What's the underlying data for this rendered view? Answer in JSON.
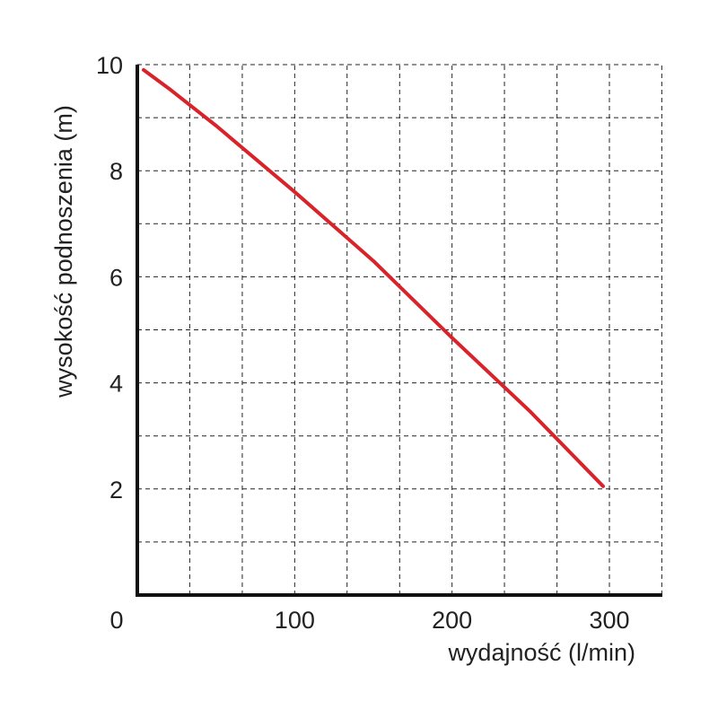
{
  "chart_data": {
    "type": "line",
    "title": "",
    "xlabel": "wydajność (l/min)",
    "ylabel": "wysokość podnoszenia (m)",
    "xlim": [
      0,
      330
    ],
    "ylim": [
      0,
      10
    ],
    "x_ticks": [
      0,
      100,
      200,
      300
    ],
    "x_tick_labels": [
      "0",
      "100",
      "200",
      "300"
    ],
    "y_ticks": [
      2,
      4,
      6,
      8,
      10
    ],
    "y_tick_labels": [
      "2",
      "4",
      "6",
      "8",
      "10"
    ],
    "x_grid": [
      33.3,
      66.7,
      100,
      133.3,
      166.7,
      200,
      233.3,
      266.7,
      300,
      333.3
    ],
    "y_grid": [
      1,
      2,
      3,
      4,
      5,
      6,
      7,
      8,
      9,
      10
    ],
    "grid": true,
    "series": [
      {
        "name": "curve",
        "color": "#d9232a",
        "x": [
          4,
          20,
          50,
          100,
          150,
          200,
          250,
          296
        ],
        "y": [
          9.9,
          9.55,
          8.85,
          7.6,
          6.3,
          4.85,
          3.45,
          2.05
        ]
      }
    ]
  }
}
